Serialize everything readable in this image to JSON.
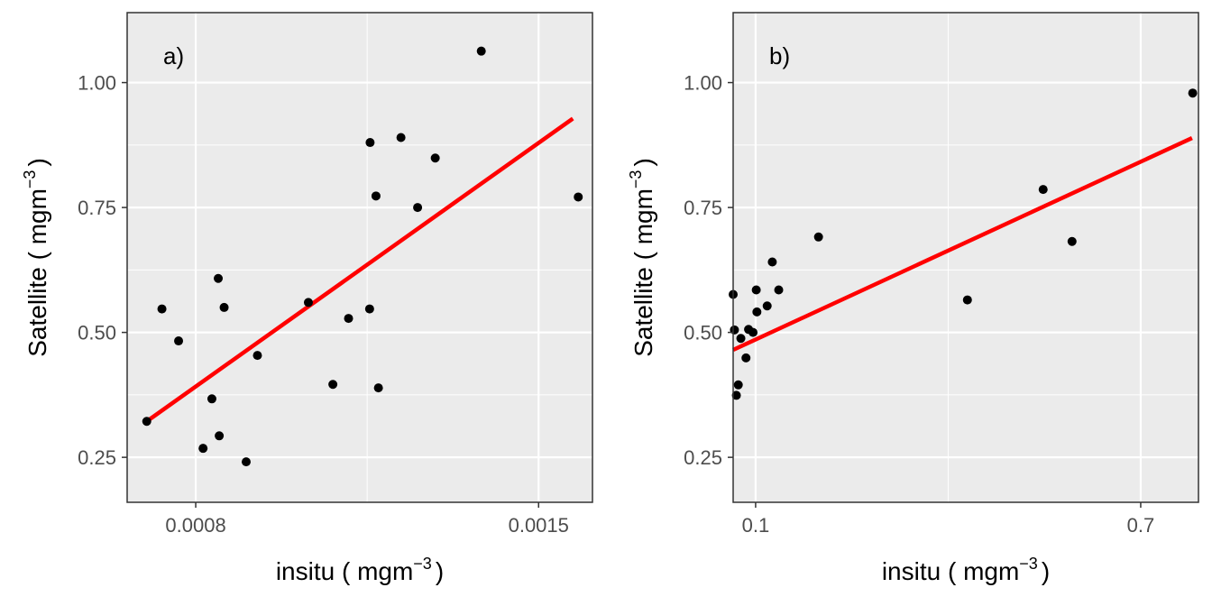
{
  "chart_data": [
    {
      "type": "scatter",
      "panel_label": "a)",
      "xlabel": "insitu ( mgm",
      "ylabel": "Satellite ( mgm",
      "label_unit_exponent": "−3",
      "label_unit_close": ")",
      "xlim": [
        0.00066,
        0.00161
      ],
      "ylim": [
        0.16,
        1.14
      ],
      "xticks": [
        {
          "value": 0.0008,
          "label": "0.0008"
        },
        {
          "value": 0.0015,
          "label": "0.0015"
        }
      ],
      "x_minor_gridlines": [
        0.00115,
        0.00185
      ],
      "yticks": [
        {
          "value": 0.25,
          "label": "0.25"
        },
        {
          "value": 0.5,
          "label": "0.50"
        },
        {
          "value": 0.75,
          "label": "0.75"
        },
        {
          "value": 1.0,
          "label": "1.00"
        }
      ],
      "y_minor_gridlines": [
        0.375,
        0.625,
        0.875
      ],
      "grid": true,
      "series": [
        {
          "points": [
            {
              "x": 0.0007,
              "y": 0.322
            },
            {
              "x": 0.000731,
              "y": 0.547
            },
            {
              "x": 0.000765,
              "y": 0.483
            },
            {
              "x": 0.000815,
              "y": 0.268
            },
            {
              "x": 0.000833,
              "y": 0.367
            },
            {
              "x": 0.000846,
              "y": 0.608
            },
            {
              "x": 0.000848,
              "y": 0.293
            },
            {
              "x": 0.000858,
              "y": 0.55
            },
            {
              "x": 0.000903,
              "y": 0.241
            },
            {
              "x": 0.000926,
              "y": 0.454
            },
            {
              "x": 0.00103,
              "y": 0.56
            },
            {
              "x": 0.00108,
              "y": 0.396
            },
            {
              "x": 0.001112,
              "y": 0.528
            },
            {
              "x": 0.001155,
              "y": 0.547
            },
            {
              "x": 0.001156,
              "y": 0.88
            },
            {
              "x": 0.001168,
              "y": 0.773
            },
            {
              "x": 0.001173,
              "y": 0.389
            },
            {
              "x": 0.001219,
              "y": 0.89
            },
            {
              "x": 0.001253,
              "y": 0.75
            },
            {
              "x": 0.001289,
              "y": 0.849
            },
            {
              "x": 0.001383,
              "y": 1.063
            },
            {
              "x": 0.001581,
              "y": 0.771
            }
          ]
        }
      ],
      "fit_line": {
        "x": [
          0.0007,
          0.00157
        ],
        "y": [
          0.322,
          0.928
        ],
        "color": "#ff0000"
      },
      "colors": {
        "points": "#000000",
        "panel_bg": "#ebebeb",
        "grid": "#ffffff",
        "border": "#333333"
      }
    },
    {
      "type": "scatter",
      "panel_label": "b)",
      "xlabel": "insitu ( mgm",
      "ylabel": "Satellite ( mgm",
      "label_unit_exponent": "−3",
      "label_unit_close": ")",
      "xlim": [
        0.065,
        0.79
      ],
      "ylim": [
        0.16,
        1.14
      ],
      "xticks": [
        {
          "value": 0.1,
          "label": "0.1"
        },
        {
          "value": 0.7,
          "label": "0.7"
        }
      ],
      "x_minor_gridlines": [
        0.4
      ],
      "yticks": [
        {
          "value": 0.25,
          "label": "0.25"
        },
        {
          "value": 0.5,
          "label": "0.50"
        },
        {
          "value": 0.75,
          "label": "0.75"
        },
        {
          "value": 1.0,
          "label": "1.00"
        }
      ],
      "y_minor_gridlines": [
        0.375,
        0.625,
        0.875
      ],
      "grid": true,
      "series": [
        {
          "points": [
            {
              "x": 0.065,
              "y": 0.576
            },
            {
              "x": 0.067,
              "y": 0.505
            },
            {
              "x": 0.07,
              "y": 0.374
            },
            {
              "x": 0.073,
              "y": 0.395
            },
            {
              "x": 0.077,
              "y": 0.488
            },
            {
              "x": 0.085,
              "y": 0.449
            },
            {
              "x": 0.089,
              "y": 0.506
            },
            {
              "x": 0.096,
              "y": 0.5
            },
            {
              "x": 0.101,
              "y": 0.585
            },
            {
              "x": 0.102,
              "y": 0.541
            },
            {
              "x": 0.118,
              "y": 0.553
            },
            {
              "x": 0.126,
              "y": 0.641
            },
            {
              "x": 0.136,
              "y": 0.585
            },
            {
              "x": 0.198,
              "y": 0.691
            },
            {
              "x": 0.43,
              "y": 0.565
            },
            {
              "x": 0.548,
              "y": 0.786
            },
            {
              "x": 0.593,
              "y": 0.682
            },
            {
              "x": 0.781,
              "y": 0.979
            }
          ]
        }
      ],
      "fit_line": {
        "x": [
          0.065,
          0.78
        ],
        "y": [
          0.465,
          0.889
        ],
        "color": "#ff0000"
      },
      "colors": {
        "points": "#000000",
        "panel_bg": "#ebebeb",
        "grid": "#ffffff",
        "border": "#333333"
      }
    }
  ]
}
